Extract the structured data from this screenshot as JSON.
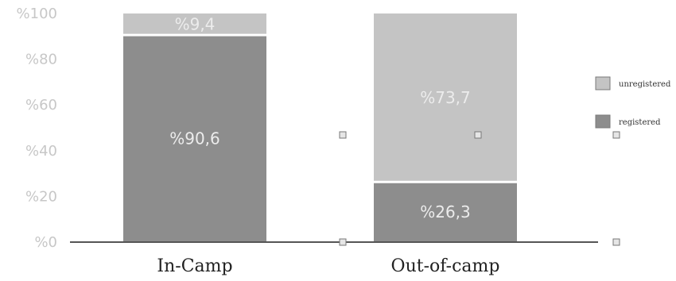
{
  "chart_data": {
    "type": "bar",
    "stacked": true,
    "categories": [
      "In-Camp",
      "Out-of-camp"
    ],
    "series": [
      {
        "name": "registered",
        "values": [
          90.6,
          26.3
        ],
        "labels": [
          "%90,6",
          "%26,3"
        ],
        "color": "#8d8d8d"
      },
      {
        "name": "unregistered",
        "values": [
          9.4,
          73.7
        ],
        "labels": [
          "%9,4",
          "%73,7"
        ],
        "color": "#c4c4c4"
      }
    ],
    "yticks": [
      0,
      20,
      40,
      60,
      80,
      100
    ],
    "ytick_labels": [
      "%0",
      "%20",
      "%40",
      "%60",
      "%80",
      "%100"
    ],
    "ylim": [
      0,
      100
    ],
    "legend": {
      "position": "right",
      "entries": [
        {
          "name": "unregistered",
          "color": "#c4c4c4"
        },
        {
          "name": "registered",
          "color": "#8d8d8d"
        }
      ]
    },
    "grid": false,
    "title": "",
    "xlabel": "",
    "ylabel": ""
  }
}
